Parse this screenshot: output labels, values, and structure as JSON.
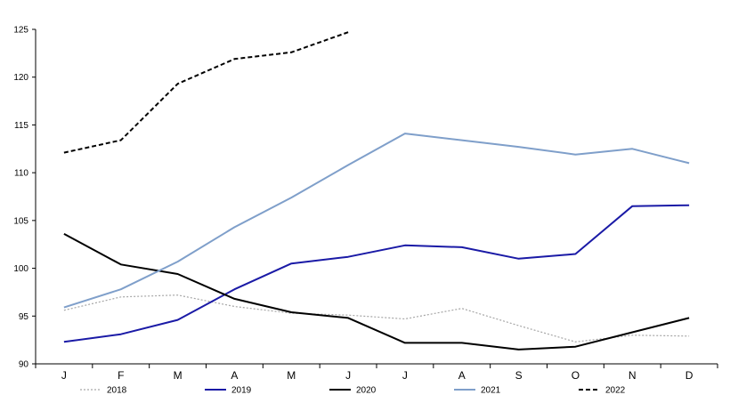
{
  "chart_data": {
    "type": "line",
    "categories": [
      "J",
      "F",
      "M",
      "A",
      "M",
      "J",
      "J",
      "A",
      "S",
      "O",
      "N",
      "D"
    ],
    "ylim": [
      90,
      125
    ],
    "yticks": [
      90,
      95,
      100,
      105,
      110,
      115,
      120,
      125
    ],
    "grid": false,
    "legend_position": "bottom",
    "series": [
      {
        "name": "2018",
        "color": "#a6a6a6",
        "dash": "dotted",
        "values": [
          95.6,
          97.0,
          97.2,
          96.0,
          95.3,
          95.1,
          94.7,
          95.8,
          94.0,
          92.3,
          93.0,
          92.9
        ]
      },
      {
        "name": "2019",
        "color": "#1a1aa6",
        "dash": "solid",
        "values": [
          92.3,
          93.1,
          94.6,
          97.8,
          100.5,
          101.2,
          102.4,
          102.2,
          101.0,
          101.5,
          106.5,
          106.6
        ]
      },
      {
        "name": "2020",
        "color": "#000000",
        "dash": "solid",
        "values": [
          103.6,
          100.4,
          99.4,
          96.8,
          95.4,
          94.8,
          92.2,
          92.2,
          91.5,
          91.8,
          93.3,
          94.8
        ]
      },
      {
        "name": "2021",
        "color": "#7f9fca",
        "dash": "solid",
        "values": [
          95.9,
          97.8,
          100.7,
          104.3,
          107.4,
          110.8,
          114.1,
          113.4,
          112.7,
          111.9,
          112.5,
          111.0
        ]
      },
      {
        "name": "2022",
        "color": "#000000",
        "dash": "dashed",
        "values": [
          112.1,
          113.4,
          119.3,
          121.9,
          122.6,
          124.7,
          null,
          null,
          null,
          null,
          null,
          null
        ]
      }
    ]
  }
}
